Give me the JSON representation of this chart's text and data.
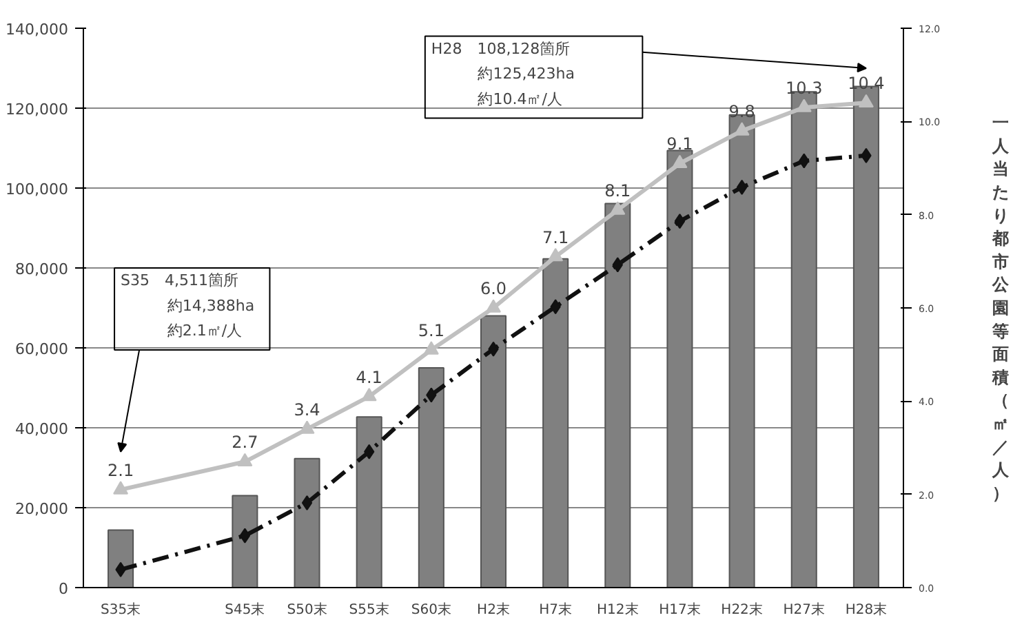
{
  "chart_data": {
    "type": "bar",
    "y2label": "一人当たり都市公園等面積（㎡／人）",
    "categories": [
      "S35末",
      null,
      "S45末",
      "S50末",
      "S55末",
      "S60末",
      "H2末",
      "H7末",
      "H12末",
      "H17末",
      "H22末",
      "H27末",
      "H28末"
    ],
    "series": [
      {
        "color": "#808080",
        "values": [
          14388,
          null,
          23000,
          32300,
          42700,
          55000,
          68000,
          82300,
          96100,
          109400,
          118300,
          124100,
          125423
        ]
      },
      {
        "type": "line",
        "color": "#c0c0c0",
        "axis": "y2",
        "marker": "triangle",
        "line_style": "solid",
        "values": [
          2.1,
          null,
          2.7,
          3.4,
          4.1,
          5.1,
          6.0,
          7.1,
          8.1,
          9.1,
          9.8,
          10.3,
          10.4
        ],
        "value_labels": [
          "2.1",
          null,
          "2.7",
          "3.4",
          "4.1",
          "5.1",
          "6.0",
          "7.1",
          "8.1",
          "9.1",
          "9.8",
          "10.3",
          "10.4"
        ]
      },
      {
        "type": "line",
        "color": "#111111",
        "marker": "diamond",
        "line_style": "dashed",
        "values": [
          4511,
          null,
          13000,
          21200,
          34000,
          48200,
          59700,
          70300,
          80800,
          91700,
          100200,
          106800,
          108128
        ]
      }
    ],
    "ylim": [
      0,
      140000
    ],
    "yticks": [
      {
        "value": 0,
        "label": "0"
      },
      {
        "value": 20000,
        "label": "20,000"
      },
      {
        "value": 40000,
        "label": "40,000"
      },
      {
        "value": 60000,
        "label": "60,000"
      },
      {
        "value": 80000,
        "label": "80,000"
      },
      {
        "value": 100000,
        "label": "100,000"
      },
      {
        "value": 120000,
        "label": "120,000"
      },
      {
        "value": 140000,
        "label": "140,000"
      }
    ],
    "y2lim": [
      0,
      12
    ],
    "y2ticks": [
      {
        "value": 0,
        "label": "0.0"
      },
      {
        "value": 2,
        "label": "2.0"
      },
      {
        "value": 4,
        "label": "4.0"
      },
      {
        "value": 6,
        "label": "6.0"
      },
      {
        "value": 8,
        "label": "8.0"
      },
      {
        "value": 10,
        "label": "10.0"
      },
      {
        "value": 12,
        "label": "12.0"
      }
    ],
    "grid": "y",
    "annotations": [
      "S35　4,511箇所",
      "約14,388ha",
      "約2.1㎡/人",
      "H28　108,128箇所",
      "約125,423ha",
      "約10.4㎡/人"
    ]
  }
}
